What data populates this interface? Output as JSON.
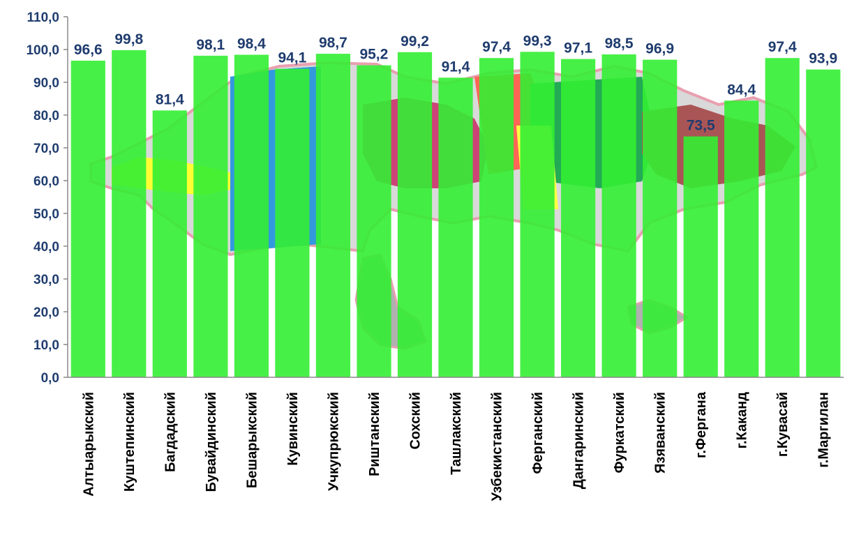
{
  "chart_data": {
    "type": "bar",
    "categories": [
      "Алтыарыкский",
      "Куштепинский",
      "Багдадский",
      "Бувайдинский",
      "Бешарыкский",
      "Кувинский",
      "Учкупрюкский",
      "Риштанский",
      "Сохский",
      "Ташлакский",
      "Узбекистанский",
      "Ферганский",
      "Дангаринский",
      "Фуркатский",
      "Язяванский",
      "г.Фергана",
      "г.Каканд",
      "г.Кувасай",
      "г.Маргилан"
    ],
    "values": [
      96.6,
      99.8,
      81.4,
      98.1,
      98.4,
      94.1,
      98.7,
      95.2,
      99.2,
      91.4,
      97.4,
      99.3,
      97.1,
      98.5,
      96.9,
      73.5,
      84.4,
      97.4,
      93.9
    ],
    "data_labels": [
      "96,6",
      "99,8",
      "81,4",
      "98,1",
      "98,4",
      "94,1",
      "98,7",
      "95,2",
      "99,2",
      "91,4",
      "97,4",
      "99,3",
      "97,1",
      "98,5",
      "96,9",
      "73,5",
      "84,4",
      "97,4",
      "93,9"
    ],
    "ylim": [
      0,
      110
    ],
    "yticks": [
      0,
      10,
      20,
      30,
      40,
      50,
      60,
      70,
      80,
      90,
      100,
      110
    ],
    "ytick_labels": [
      "0,0",
      "10,0",
      "20,0",
      "30,0",
      "40,0",
      "50,0",
      "60,0",
      "70,0",
      "80,0",
      "90,0",
      "100,0",
      "110,0"
    ],
    "title": "",
    "xlabel": "",
    "ylabel": "",
    "grid": false,
    "bar_color": "#33ee33",
    "label_color": "#1f3c6e",
    "background_image": "regional map"
  }
}
